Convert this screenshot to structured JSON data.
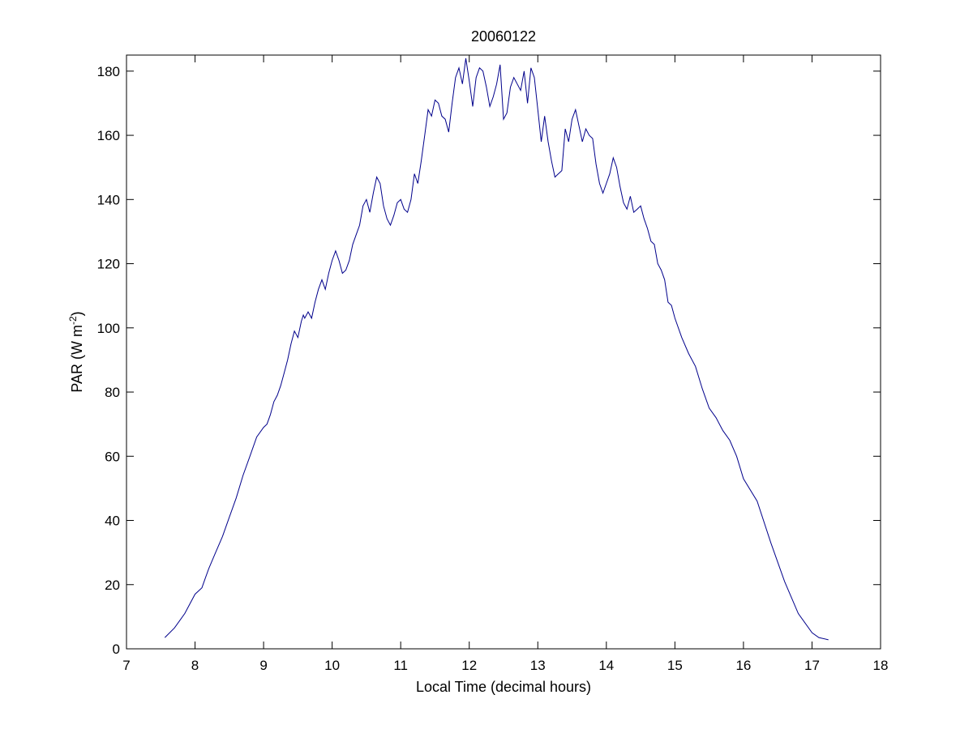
{
  "chart_data": {
    "type": "line",
    "title": "20060122",
    "xlabel": "Local Time (decimal hours)",
    "ylabel": {
      "prefix": "PAR (W m",
      "superscript": "-2",
      "suffix": ")"
    },
    "xlim": [
      7,
      18
    ],
    "ylim": [
      0,
      185
    ],
    "x_ticks": [
      7,
      8,
      9,
      10,
      11,
      12,
      13,
      14,
      15,
      16,
      17,
      18
    ],
    "y_ticks": [
      0,
      20,
      40,
      60,
      80,
      100,
      120,
      140,
      160,
      180
    ],
    "grid": false,
    "line_color": "#00008b",
    "series": [
      {
        "x": [
          7.56,
          7.7,
          7.85,
          8.0,
          8.1,
          8.15,
          8.2,
          8.3,
          8.4,
          8.5,
          8.6,
          8.7,
          8.8,
          8.9,
          9.0,
          9.05,
          9.1,
          9.15,
          9.2,
          9.25,
          9.3,
          9.35,
          9.4,
          9.45,
          9.5,
          9.55,
          9.58,
          9.6,
          9.65,
          9.7,
          9.75,
          9.8,
          9.85,
          9.9,
          9.95,
          10.0,
          10.05,
          10.1,
          10.15,
          10.2,
          10.25,
          10.3,
          10.35,
          10.4,
          10.45,
          10.5,
          10.55,
          10.6,
          10.65,
          10.7,
          10.75,
          10.8,
          10.85,
          10.9,
          10.95,
          11.0,
          11.05,
          11.1,
          11.15,
          11.2,
          11.25,
          11.3,
          11.35,
          11.4,
          11.45,
          11.5,
          11.55,
          11.6,
          11.65,
          11.7,
          11.75,
          11.8,
          11.85,
          11.9,
          11.95,
          12.0,
          12.05,
          12.1,
          12.15,
          12.2,
          12.25,
          12.3,
          12.35,
          12.4,
          12.45,
          12.5,
          12.55,
          12.6,
          12.65,
          12.7,
          12.75,
          12.8,
          12.85,
          12.9,
          12.95,
          13.0,
          13.05,
          13.1,
          13.15,
          13.2,
          13.25,
          13.3,
          13.35,
          13.4,
          13.45,
          13.5,
          13.55,
          13.6,
          13.65,
          13.7,
          13.75,
          13.8,
          13.85,
          13.9,
          13.95,
          14.0,
          14.05,
          14.1,
          14.15,
          14.2,
          14.25,
          14.3,
          14.35,
          14.4,
          14.45,
          14.5,
          14.55,
          14.6,
          14.65,
          14.7,
          14.75,
          14.8,
          14.85,
          14.9,
          14.95,
          15.0,
          15.1,
          15.2,
          15.3,
          15.4,
          15.5,
          15.6,
          15.7,
          15.8,
          15.9,
          16.0,
          16.2,
          16.4,
          16.6,
          16.8,
          17.0,
          17.1,
          17.24
        ],
        "y": [
          3.5,
          6.5,
          11,
          17,
          19,
          22,
          25,
          30,
          35,
          41,
          47,
          54,
          60,
          66,
          69,
          70,
          73,
          77,
          79,
          82,
          86,
          90,
          95,
          99,
          97,
          102,
          104,
          103,
          105,
          103,
          108,
          112,
          115,
          112,
          117,
          121,
          124,
          121,
          117,
          118,
          121,
          126,
          129,
          132,
          138,
          140,
          136,
          142,
          147,
          145,
          138,
          134,
          132,
          135,
          139,
          140,
          137,
          136,
          140,
          148,
          145,
          152,
          160,
          168,
          166,
          171,
          170,
          166,
          165,
          161,
          170,
          178,
          181,
          176,
          184,
          177,
          169,
          178,
          181,
          180,
          175,
          169,
          172,
          176,
          182,
          165,
          167,
          175,
          178,
          176,
          174,
          180,
          170,
          181,
          178,
          168,
          158,
          166,
          158,
          152,
          147,
          148,
          149,
          162,
          158,
          165,
          168,
          163,
          158,
          162,
          160,
          159,
          151,
          145,
          142,
          145,
          148,
          153,
          150,
          144,
          139,
          137,
          141,
          136,
          137,
          138,
          134,
          131,
          127,
          126,
          120,
          118,
          115,
          108,
          107,
          103,
          97,
          92,
          88,
          81,
          75,
          72,
          68,
          65,
          60,
          53,
          46,
          33,
          21,
          11,
          5,
          3.5,
          2.8
        ]
      }
    ]
  }
}
